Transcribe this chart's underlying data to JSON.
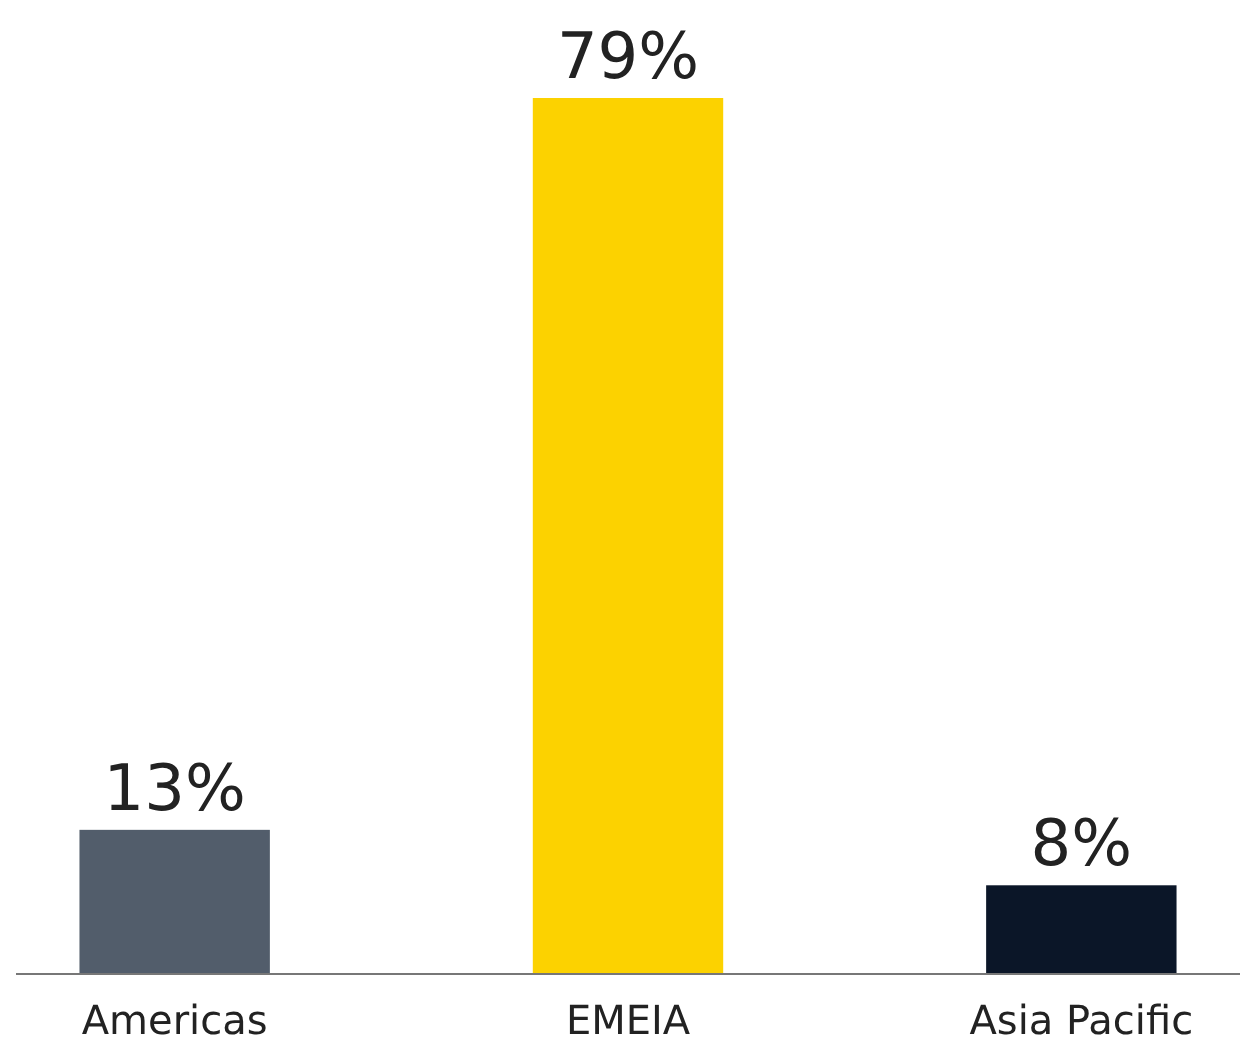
{
  "chart_data": {
    "type": "bar",
    "categories": [
      "Americas",
      "EMEIA",
      "Asia Pacific"
    ],
    "values": [
      13,
      79,
      8
    ],
    "colors": [
      "#525d6b",
      "#fcd200",
      "#0b1628"
    ],
    "value_labels": [
      "13%",
      "79%",
      "8%"
    ]
  }
}
